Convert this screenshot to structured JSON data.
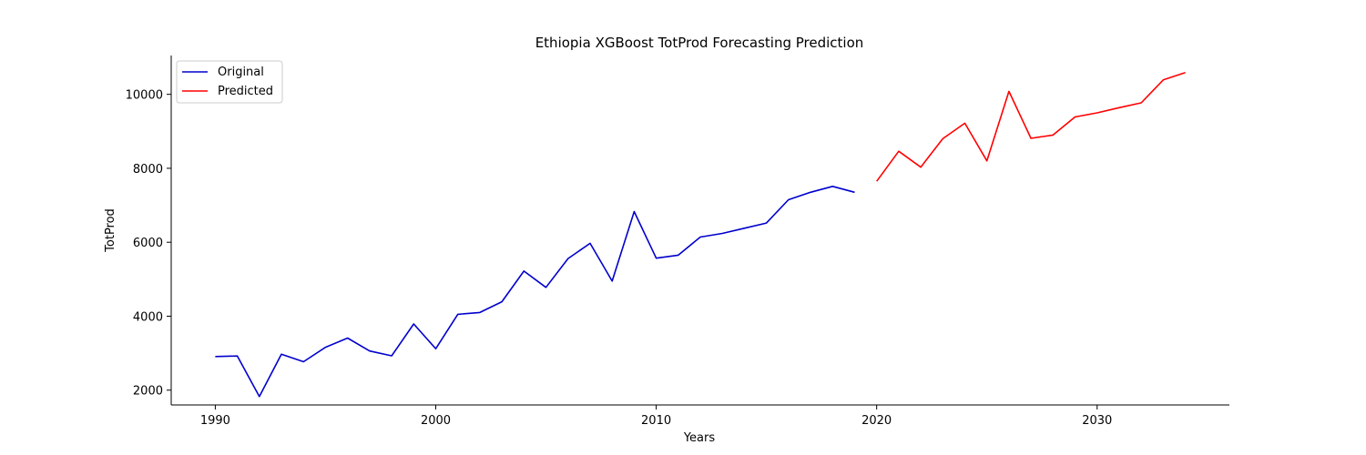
{
  "chart_data": {
    "type": "line",
    "title": "Ethiopia XGBoost TotProd Forecasting Prediction",
    "xlabel": "Years",
    "ylabel": "TotProd",
    "xlim": [
      1988,
      2036
    ],
    "ylim": [
      1600,
      11050
    ],
    "xticks": [
      "1990",
      "2000",
      "2010",
      "2020",
      "2030"
    ],
    "yticks": [
      "2000",
      "4000",
      "6000",
      "8000",
      "10000"
    ],
    "grid": false,
    "legend_position": "top-left",
    "series": [
      {
        "name": "Original",
        "color": "#0000cc",
        "x": [
          1990,
          1991,
          1992,
          1993,
          1994,
          1995,
          1996,
          1997,
          1998,
          1999,
          2000,
          2001,
          2002,
          2003,
          2004,
          2005,
          2006,
          2007,
          2008,
          2009,
          2010,
          2011,
          2012,
          2013,
          2014,
          2015,
          2016,
          2017,
          2018,
          2019
        ],
        "y": [
          2910,
          2925,
          1830,
          2970,
          2770,
          3160,
          3410,
          3060,
          2930,
          3790,
          3120,
          4050,
          4100,
          4390,
          5220,
          4780,
          5560,
          5970,
          4950,
          6830,
          5570,
          5650,
          6140,
          6240,
          6380,
          6520,
          7150,
          7350,
          7510,
          7350
        ]
      },
      {
        "name": "Predicted",
        "color": "#ff0000",
        "x": [
          2020,
          2021,
          2022,
          2023,
          2024,
          2025,
          2026,
          2027,
          2028,
          2029,
          2030,
          2031,
          2032,
          2033,
          2034
        ],
        "y": [
          7650,
          8460,
          8030,
          8800,
          9220,
          8200,
          10080,
          8810,
          8900,
          9390,
          9500,
          9640,
          9770,
          10390,
          10590
        ]
      }
    ]
  }
}
